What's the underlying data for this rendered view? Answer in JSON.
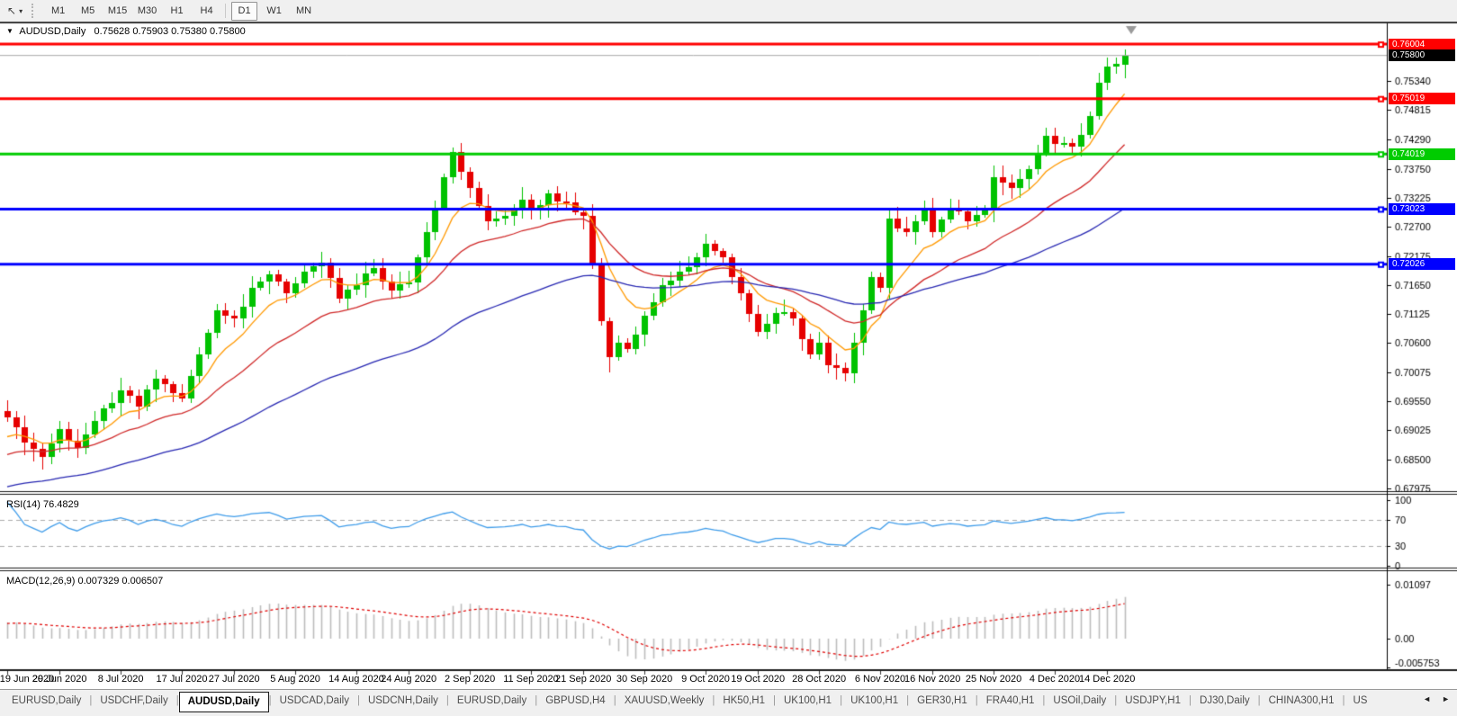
{
  "toolbar": {
    "cursor_tool": "cursor-arrow",
    "caret": "▾",
    "timeframes": [
      "M1",
      "M5",
      "M15",
      "M30",
      "H1",
      "H4",
      "D1",
      "W1",
      "MN"
    ],
    "active_timeframe": "D1"
  },
  "chart": {
    "title_marker": "▼",
    "symbol_timeframe": "AUDUSD,Daily",
    "ohlc_text": "0.75628 0.75903 0.75380 0.75800"
  },
  "price_axis": {
    "ticks": [
      0.7534,
      0.74815,
      0.7429,
      0.7375,
      0.73225,
      0.727,
      0.72175,
      0.7165,
      0.71125,
      0.706,
      0.70075,
      0.6955,
      0.69025,
      0.685,
      0.67975
    ]
  },
  "levels": [
    {
      "value": 0.76004,
      "label": "0.76004",
      "color": "#FF0000",
      "style": "thick",
      "role": "resistance"
    },
    {
      "value": 0.758,
      "label": "0.75800",
      "color": "#000000",
      "line_color": "#A8A8A8",
      "style": "thin",
      "role": "current-price"
    },
    {
      "value": 0.75019,
      "label": "0.75019",
      "color": "#FF0000",
      "style": "thick",
      "role": "resistance"
    },
    {
      "value": 0.74019,
      "label": "0.74019",
      "color": "#00CC00",
      "style": "thick",
      "role": "support"
    },
    {
      "value": 0.73023,
      "label": "0.73023",
      "color": "#0000FF",
      "style": "thick",
      "role": "support"
    },
    {
      "value": 0.72026,
      "label": "0.72026",
      "color": "#0000FF",
      "style": "thick",
      "role": "support"
    }
  ],
  "rsi_panel": {
    "label": "RSI(14) 76.4829",
    "axis_ticks": [
      100,
      70,
      30,
      0
    ],
    "guides": [
      70,
      30
    ]
  },
  "macd_panel": {
    "label": "MACD(12,26,9) 0.007329 0.006507",
    "axis_ticks": [
      {
        "v": 0.01097,
        "label": "0.01097"
      },
      {
        "v": 0,
        "label": "0.00"
      },
      {
        "v": -0.005753,
        "label": "-0.005753"
      }
    ]
  },
  "tabs_divider": "|",
  "tabs": [
    {
      "label": "EURUSD,Daily"
    },
    {
      "label": "USDCHF,Daily"
    },
    {
      "label": "AUDUSD,Daily",
      "active": true
    },
    {
      "label": "USDCAD,Daily"
    },
    {
      "label": "USDCNH,Daily"
    },
    {
      "label": "EURUSD,Daily"
    },
    {
      "label": "GBPUSD,H4"
    },
    {
      "label": "XAUUSD,Weekly"
    },
    {
      "label": "HK50,H1"
    },
    {
      "label": "UK100,H1"
    },
    {
      "label": "UK100,H1"
    },
    {
      "label": "GER30,H1"
    },
    {
      "label": "FRA40,H1"
    },
    {
      "label": "USOil,Daily"
    },
    {
      "label": "USDJPY,H1"
    },
    {
      "label": "DJ30,Daily"
    },
    {
      "label": "CHINA300,H1"
    },
    {
      "label": "US"
    }
  ],
  "tab_scroll": {
    "left": "◄",
    "right": "►"
  },
  "chart_data": {
    "type": "candlestick",
    "symbol": "AUDUSD",
    "timeframe": "Daily",
    "title": "AUDUSD,Daily",
    "ohlc_display": {
      "open": 0.75628,
      "high": 0.75903,
      "low": 0.7538,
      "close": 0.758
    },
    "bars": 129,
    "y_axis_range_hint": [
      0.6786,
      0.7638
    ],
    "x_labels": [
      {
        "text": "19 Jun 2020",
        "bar": 0
      },
      {
        "text": "29 Jun 2020",
        "bar": 6
      },
      {
        "text": "8 Jul 2020",
        "bar": 13
      },
      {
        "text": "17 Jul 2020",
        "bar": 20
      },
      {
        "text": "27 Jul 2020",
        "bar": 26
      },
      {
        "text": "5 Aug 2020",
        "bar": 33
      },
      {
        "text": "14 Aug 2020",
        "bar": 40
      },
      {
        "text": "24 Aug 2020",
        "bar": 46
      },
      {
        "text": "2 Sep 2020",
        "bar": 53
      },
      {
        "text": "11 Sep 2020",
        "bar": 60
      },
      {
        "text": "21 Sep 2020",
        "bar": 66
      },
      {
        "text": "30 Sep 2020",
        "bar": 73
      },
      {
        "text": "9 Oct 2020",
        "bar": 80
      },
      {
        "text": "19 Oct 2020",
        "bar": 86
      },
      {
        "text": "28 Oct 2020",
        "bar": 93
      },
      {
        "text": "6 Nov 2020",
        "bar": 100
      },
      {
        "text": "16 Nov 2020",
        "bar": 106
      },
      {
        "text": "25 Nov 2020",
        "bar": 113
      },
      {
        "text": "4 Dec 2020",
        "bar": 120
      },
      {
        "text": "14 Dec 2020",
        "bar": 126
      }
    ],
    "price_keyframes": [
      [
        0,
        0.6925
      ],
      [
        2,
        0.688
      ],
      [
        4,
        0.6855
      ],
      [
        6,
        0.6905
      ],
      [
        8,
        0.687
      ],
      [
        10,
        0.692
      ],
      [
        13,
        0.6975
      ],
      [
        15,
        0.6945
      ],
      [
        17,
        0.6995
      ],
      [
        20,
        0.696
      ],
      [
        22,
        0.704
      ],
      [
        24,
        0.712
      ],
      [
        26,
        0.7105
      ],
      [
        28,
        0.716
      ],
      [
        30,
        0.7185
      ],
      [
        32,
        0.715
      ],
      [
        34,
        0.719
      ],
      [
        36,
        0.7205
      ],
      [
        38,
        0.714
      ],
      [
        40,
        0.7165
      ],
      [
        42,
        0.7195
      ],
      [
        44,
        0.7155
      ],
      [
        46,
        0.717
      ],
      [
        48,
        0.726
      ],
      [
        50,
        0.736
      ],
      [
        51,
        0.7405
      ],
      [
        52,
        0.737
      ],
      [
        53,
        0.734
      ],
      [
        55,
        0.728
      ],
      [
        57,
        0.729
      ],
      [
        59,
        0.732
      ],
      [
        60,
        0.73
      ],
      [
        62,
        0.733
      ],
      [
        64,
        0.7315
      ],
      [
        66,
        0.729
      ],
      [
        67,
        0.72
      ],
      [
        68,
        0.71
      ],
      [
        69,
        0.7035
      ],
      [
        70,
        0.706
      ],
      [
        71,
        0.705
      ],
      [
        73,
        0.711
      ],
      [
        75,
        0.7165
      ],
      [
        77,
        0.719
      ],
      [
        79,
        0.7215
      ],
      [
        80,
        0.724
      ],
      [
        82,
        0.7215
      ],
      [
        84,
        0.715
      ],
      [
        86,
        0.708
      ],
      [
        88,
        0.7115
      ],
      [
        90,
        0.7105
      ],
      [
        92,
        0.704
      ],
      [
        93,
        0.706
      ],
      [
        94,
        0.702
      ],
      [
        96,
        0.7005
      ],
      [
        97,
        0.706
      ],
      [
        98,
        0.712
      ],
      [
        99,
        0.718
      ],
      [
        100,
        0.716
      ],
      [
        101,
        0.7285
      ],
      [
        103,
        0.726
      ],
      [
        105,
        0.73
      ],
      [
        106,
        0.726
      ],
      [
        108,
        0.7305
      ],
      [
        110,
        0.728
      ],
      [
        112,
        0.73
      ],
      [
        113,
        0.736
      ],
      [
        115,
        0.734
      ],
      [
        117,
        0.7375
      ],
      [
        119,
        0.7435
      ],
      [
        120,
        0.742
      ],
      [
        122,
        0.7415
      ],
      [
        124,
        0.747
      ],
      [
        125,
        0.753
      ],
      [
        126,
        0.756
      ],
      [
        127,
        0.7565
      ],
      [
        128,
        0.758
      ]
    ],
    "wick_overrides": [
      [
        4,
        "low",
        0.6832
      ],
      [
        51,
        "high",
        0.7414
      ],
      [
        69,
        "low",
        0.70065
      ],
      [
        96,
        "low",
        0.699
      ]
    ],
    "warmup": {
      "bars": 45,
      "from": 0.669,
      "to": 0.69
    },
    "moving_averages": [
      {
        "period": 8,
        "color": "#FF9900",
        "name": "fast-ma"
      },
      {
        "period": 21,
        "color": "#D02828",
        "name": "mid-ma"
      },
      {
        "period": 55,
        "color": "#2727B2",
        "name": "slow-ma"
      }
    ],
    "rsi": {
      "period": 14,
      "last": 76.4829
    },
    "macd": {
      "fast": 12,
      "slow": 26,
      "signal": 9,
      "last_main": 0.007329,
      "last_signal": 0.006507
    },
    "style": {
      "up": "#00C200",
      "down": "#E60000",
      "hist": "#BDBDBD",
      "signal": "#E00000",
      "rsi_line": "#3E9CEA",
      "current_line": "#A8A8A8",
      "guide": "#ABABAB"
    }
  }
}
